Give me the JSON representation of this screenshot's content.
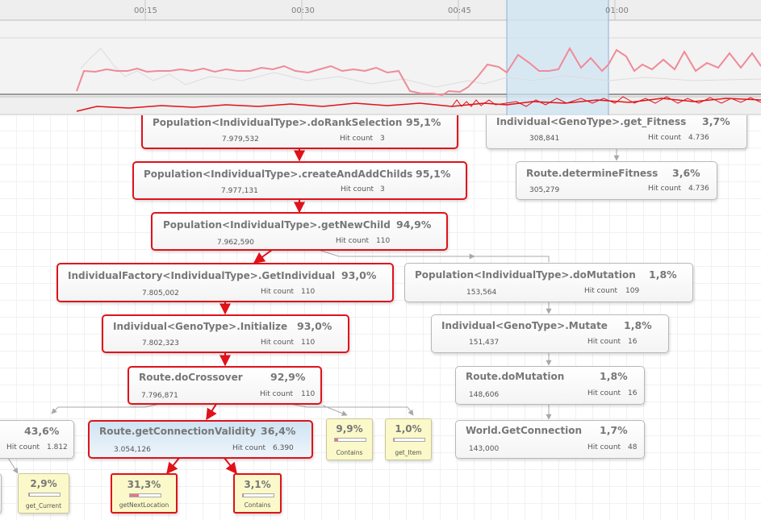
{
  "timeline": {
    "ticks": [
      "00:15",
      "00:30",
      "00:45",
      "01:00"
    ]
  },
  "colors": {
    "hot_border": "#e0121a",
    "cold_border": "#b8b8b8",
    "selection": "#d6e9f7",
    "sparkline": "#f08a98"
  },
  "nodes": {
    "rank_selection": {
      "name": "Population<IndividualType>.doRankSelection",
      "percent": "95,1%",
      "time": "7.979,532",
      "hit_label": "Hit count",
      "hits": "3"
    },
    "create_add_childs": {
      "name": "Population<IndividualType>.createAndAddChilds",
      "percent": "95,1%",
      "time": "7.977,131",
      "hit_label": "Hit count",
      "hits": "3"
    },
    "get_new_child": {
      "name": "Population<IndividualType>.getNewChild",
      "percent": "94,9%",
      "time": "7.962,590",
      "hit_label": "Hit count",
      "hits": "110"
    },
    "get_individual": {
      "name": "IndividualFactory<IndividualType>.GetIndividual",
      "percent": "93,0%",
      "time": "7.805,002",
      "hit_label": "Hit count",
      "hits": "110"
    },
    "initialize": {
      "name": "Individual<GenoType>.Initialize",
      "percent": "93,0%",
      "time": "7.802,323",
      "hit_label": "Hit count",
      "hits": "110"
    },
    "do_crossover": {
      "name": "Route.doCrossover",
      "percent": "92,9%",
      "time": "7.796,871",
      "hit_label": "Hit count",
      "hits": "110"
    },
    "connection_validity": {
      "name": "Route.getConnectionValidity",
      "percent": "36,4%",
      "time": "3.054,126",
      "hit_label": "Hit count",
      "hits": "6.390"
    },
    "left_partial": {
      "percent": "43,6%",
      "hit_label": "Hit count",
      "hits": "1.812"
    },
    "get_fitness": {
      "name": "Individual<GenoType>.get_Fitness",
      "percent": "3,7%",
      "time": "308,841",
      "hit_label": "Hit count",
      "hits": "4.736"
    },
    "determine_fitness": {
      "name": "Route.determineFitness",
      "percent": "3,6%",
      "time": "305,279",
      "hit_label": "Hit count",
      "hits": "4.736"
    },
    "do_mutation_pop": {
      "name": "Population<IndividualType>.doMutation",
      "percent": "1,8%",
      "time": "153,564",
      "hit_label": "Hit count",
      "hits": "109"
    },
    "mutate": {
      "name": "Individual<GenoType>.Mutate",
      "percent": "1,8%",
      "time": "151,437",
      "hit_label": "Hit count",
      "hits": "16"
    },
    "route_do_mutation": {
      "name": "Route.doMutation",
      "percent": "1,8%",
      "time": "148,606",
      "hit_label": "Hit count",
      "hits": "16"
    },
    "get_connection": {
      "name": "World.GetConnection",
      "percent": "1,7%",
      "time": "143,000",
      "hit_label": "Hit count",
      "hits": "48"
    }
  },
  "leaves": {
    "contains_top": {
      "percent": "9,9%",
      "label": "Contains",
      "fill": 0.099
    },
    "get_item": {
      "percent": "1,0%",
      "label": "get_Item",
      "fill": 0.01
    },
    "get_current": {
      "percent": "2,9%",
      "label": "get_Current",
      "fill": 0.029
    },
    "get_next_location": {
      "percent": "31,3%",
      "label": "getNextLocation",
      "fill": 0.313
    },
    "contains_bottom": {
      "percent": "3,1%",
      "label": "Contains",
      "fill": 0.031
    }
  }
}
